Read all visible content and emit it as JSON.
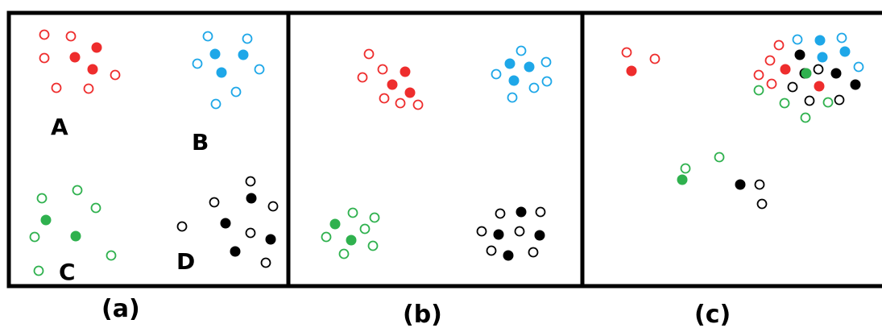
{
  "colors": {
    "red": "#ee2d2d",
    "blue": "#1ea7e8",
    "green": "#2fb14e",
    "black": "#000000"
  },
  "cluster_labels": {
    "a": "A",
    "b": "B",
    "c": "C",
    "d": "D"
  },
  "panel_captions": {
    "a": "(a)",
    "b": "(b)",
    "c": "(c)"
  }
}
